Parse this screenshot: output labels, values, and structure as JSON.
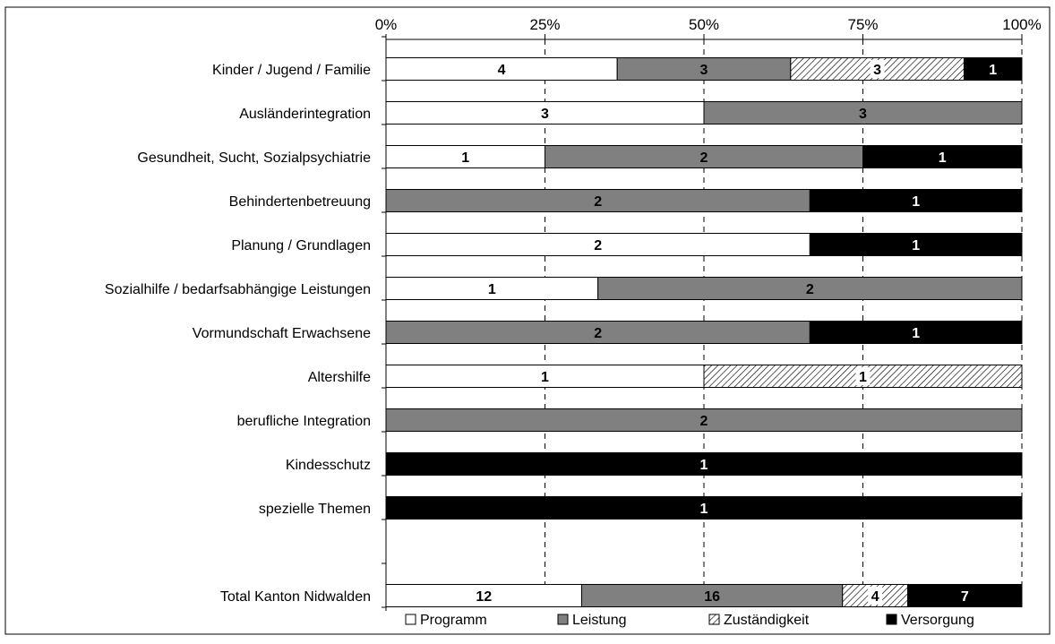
{
  "chart_data": {
    "type": "bar",
    "orientation": "horizontal",
    "stacking": "percent",
    "x_tick_labels": [
      "0%",
      "25%",
      "50%",
      "75%",
      "100%"
    ],
    "xlim": [
      0,
      100
    ],
    "grid": "vertical dashed",
    "legend_position": "bottom",
    "categories": [
      "Kinder / Jugend / Familie",
      "Ausländerintegration",
      "Gesundheit, Sucht, Sozialpsychiatrie",
      "Behindertenbetreuung",
      "Planung / Grundlagen",
      "Sozialhilfe / bedarfsabhängige Leistungen",
      "Vormundschaft Erwachsene",
      "Altershilfe",
      "berufliche Integration",
      "Kindesschutz",
      "spezielle Themen",
      "",
      "Total Kanton Nidwalden"
    ],
    "series": [
      {
        "name": "Programm",
        "color": "#ffffff",
        "pattern": "none",
        "values": [
          4,
          3,
          1,
          0,
          2,
          1,
          0,
          1,
          0,
          0,
          0,
          null,
          12
        ]
      },
      {
        "name": "Leistung",
        "color": "#808080",
        "pattern": "none",
        "values": [
          3,
          3,
          2,
          2,
          0,
          2,
          2,
          0,
          2,
          0,
          0,
          null,
          16
        ]
      },
      {
        "name": "Zuständigkeit",
        "color": "#ffffff",
        "pattern": "diagonal-hatch",
        "values": [
          3,
          0,
          0,
          0,
          0,
          0,
          0,
          1,
          0,
          0,
          0,
          null,
          4
        ]
      },
      {
        "name": "Versorgung",
        "color": "#000000",
        "pattern": "none",
        "values": [
          1,
          0,
          1,
          1,
          1,
          0,
          1,
          0,
          0,
          1,
          1,
          null,
          7
        ]
      }
    ]
  }
}
